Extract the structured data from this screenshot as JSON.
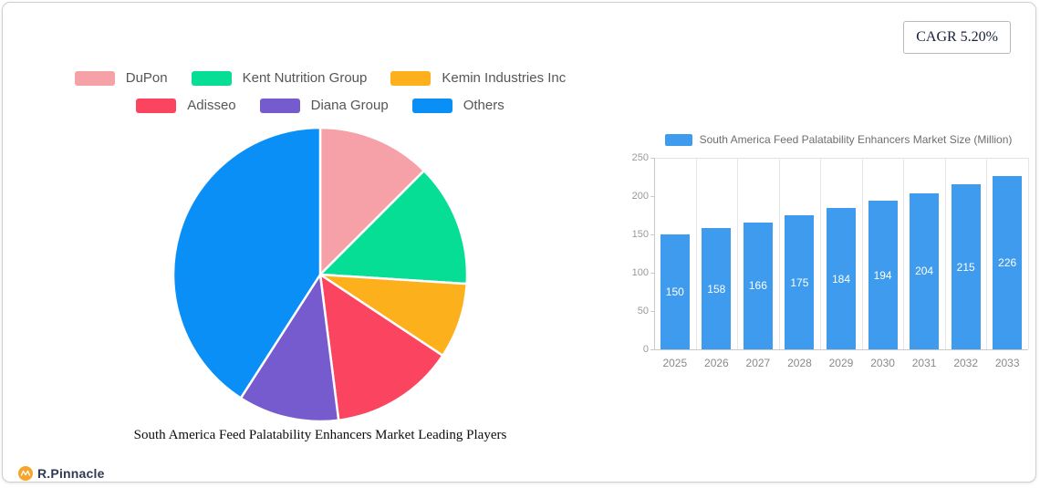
{
  "cagr_badge": {
    "label": "CAGR 5.20%"
  },
  "branding": {
    "name": "R.Pinnacle",
    "icon_color": "#F7A42B",
    "text_color": "#2f3b52"
  },
  "chart_data": [
    {
      "type": "pie",
      "title": "South America Feed Palatability Enhancers Market Leading Players",
      "legend_position": "top",
      "legend_rows": [
        [
          "DuPon",
          "Kent Nutrition Group",
          "Kemin Industries Inc"
        ],
        [
          "Adisseo",
          "Diana Group",
          "Others"
        ]
      ],
      "start_angle_deg": 0,
      "direction": "clockwise",
      "series": [
        {
          "name": "DuPon",
          "value": 12.5,
          "color": "#F5A1A7"
        },
        {
          "name": "Kent Nutrition Group",
          "value": 13.5,
          "color": "#06DE96"
        },
        {
          "name": "Kemin Industries Inc",
          "value": 8.3,
          "color": "#FCB01B"
        },
        {
          "name": "Adisseo",
          "value": 13.7,
          "color": "#FB4560"
        },
        {
          "name": "Diana Group",
          "value": 11.1,
          "color": "#755BCE"
        },
        {
          "name": "Others",
          "value": 40.9,
          "color": "#098FF6"
        }
      ]
    },
    {
      "type": "bar",
      "legend": "South America Feed Palatability Enhancers Market Size (Million)",
      "categories": [
        "2025",
        "2026",
        "2027",
        "2028",
        "2029",
        "2030",
        "2031",
        "2032",
        "2033"
      ],
      "values": [
        150,
        158,
        166,
        175,
        184,
        194,
        204,
        215,
        226
      ],
      "ylim": [
        0,
        250
      ],
      "yticks": [
        0,
        50,
        100,
        150,
        200,
        250
      ],
      "bar_color": "#3E9BED",
      "value_label_color": "#ffffff",
      "grid": "vertical",
      "legend_position": "top"
    }
  ]
}
